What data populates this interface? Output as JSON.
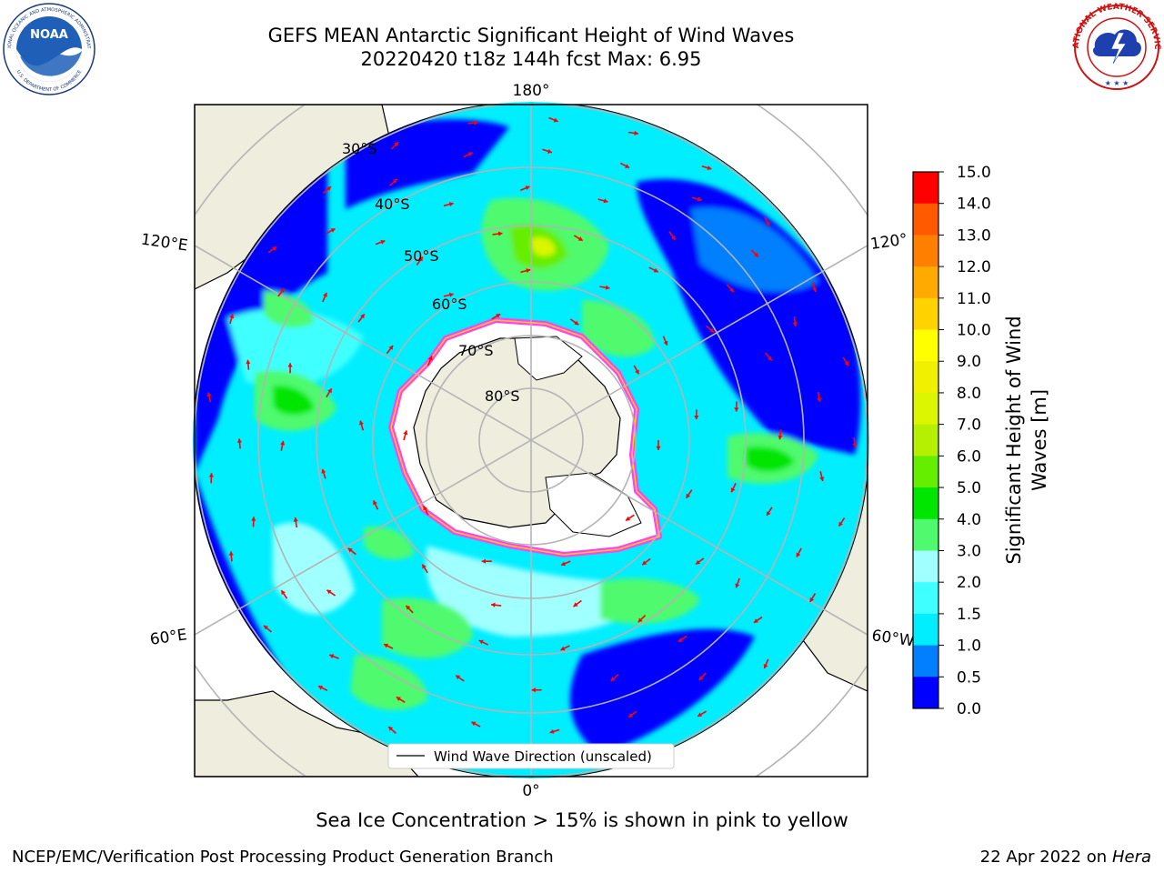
{
  "header": {
    "title_line1": "GEFS MEAN Antarctic Significant Height of Wind Waves",
    "title_line2": "20220420 t18z 144h fcst   Max: 6.95"
  },
  "logos": {
    "left": {
      "name": "NOAA",
      "ring_text": "NATIONAL OCEANIC AND ATMOSPHERIC ADMINISTRATION",
      "bottom_text": "U.S. DEPARTMENT OF COMMERCE"
    },
    "right": {
      "name": "NATIONAL WEATHER SERVICE"
    }
  },
  "map": {
    "longitude_labels": {
      "top": "180°",
      "bottom": "0°",
      "upper_left": "120°E",
      "lower_left": "60°E",
      "upper_right": "120°",
      "lower_right": "60°W"
    },
    "latitude_labels": [
      "30°S",
      "40°S",
      "50°S",
      "60°S",
      "70°S",
      "80°S"
    ],
    "legend_label": "Wind Wave Direction (unscaled)",
    "colors": {
      "land": "#efedde",
      "ice_edge": "#ff40ff",
      "arrow": "#ff0000",
      "grid": "#b4b4b4"
    }
  },
  "colorbar": {
    "label_line1": "Significant Height of Wind",
    "label_line2": "Waves [m]",
    "ticks": [
      "0.0",
      "0.5",
      "1.0",
      "1.5",
      "2.0",
      "3.0",
      "4.0",
      "5.0",
      "6.0",
      "7.0",
      "8.0",
      "9.0",
      "10.0",
      "11.0",
      "12.0",
      "13.0",
      "14.0",
      "15.0"
    ],
    "colors": [
      "#0000ff",
      "#0080ff",
      "#00eeff",
      "#40ffff",
      "#a0ffff",
      "#50fa6e",
      "#00e600",
      "#66ee00",
      "#b4f000",
      "#dcf500",
      "#f0f000",
      "#ffff00",
      "#ffd200",
      "#ffaa00",
      "#ff8000",
      "#ff5a00",
      "#ff0000"
    ]
  },
  "footer": {
    "note": "Sea Ice Concentration > 15% is shown in pink to yellow",
    "left": "NCEP/EMC/Verification Post Processing Product Generation Branch",
    "right_date": "22 Apr 2022 on ",
    "right_host": "Hera"
  }
}
